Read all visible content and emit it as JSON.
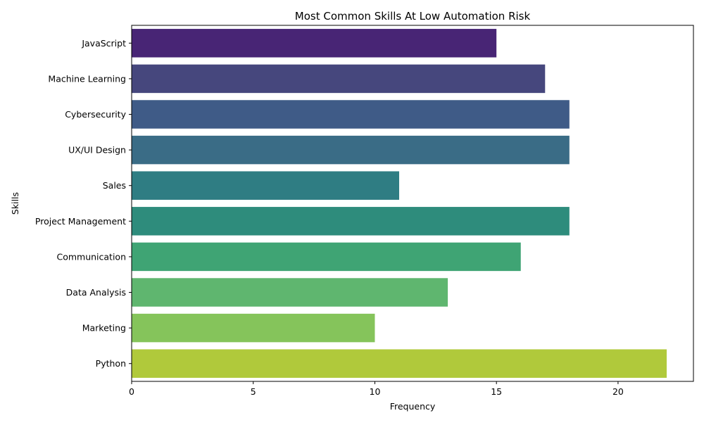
{
  "chart_data": {
    "type": "bar",
    "orientation": "horizontal",
    "title": "Most Common Skills At Low Automation Risk",
    "xlabel": "Frequency",
    "ylabel": "Skills",
    "xlim": [
      0,
      23.1
    ],
    "xticks": [
      0,
      5,
      10,
      15,
      20
    ],
    "grid": false,
    "categories": [
      "JavaScript",
      "Machine Learning",
      "Cybersecurity",
      "UX/UI Design",
      "Sales",
      "Project Management",
      "Communication",
      "Data Analysis",
      "Marketing",
      "Python"
    ],
    "values": [
      15,
      17,
      18,
      18,
      11,
      18,
      16,
      13,
      10,
      22
    ],
    "colors": [
      "#482575",
      "#46477d",
      "#3f5b87",
      "#3a6c86",
      "#2f7d83",
      "#2e8c7c",
      "#3fa474",
      "#5fb66f",
      "#85c45b",
      "#b0c93b"
    ]
  }
}
